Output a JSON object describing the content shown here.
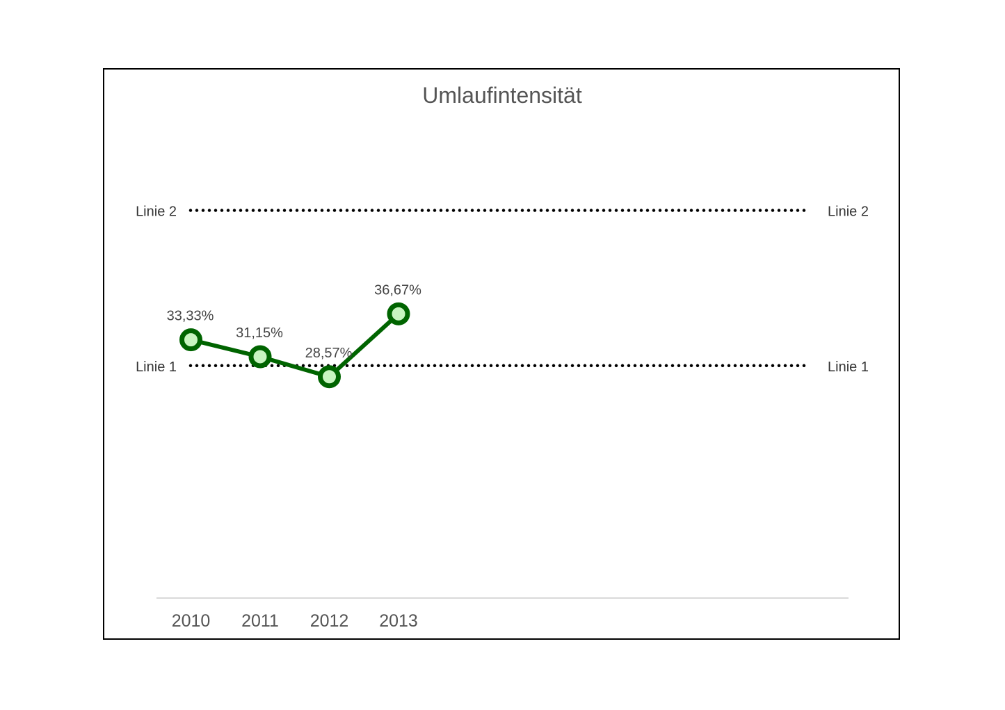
{
  "chart_data": {
    "type": "line",
    "title": "Umlaufintensität",
    "categories": [
      "2010",
      "2011",
      "2012",
      "2013"
    ],
    "values": [
      33.33,
      31.15,
      28.57,
      36.67
    ],
    "data_labels": [
      "33,33%",
      "31,15%",
      "28,57%",
      "36,67%"
    ],
    "reference_lines": [
      {
        "name": "Linie 1",
        "value": 30.0
      },
      {
        "name": "Linie 2",
        "value": 50.0
      }
    ],
    "xlabel": "",
    "ylabel": "",
    "y_axis_visible": false,
    "grid": false,
    "colors": {
      "line": "#006400",
      "marker_fill": "#c8f5c0",
      "reference_line": "#000000",
      "frame": "#000000",
      "axis": "#d9d9d9"
    }
  }
}
